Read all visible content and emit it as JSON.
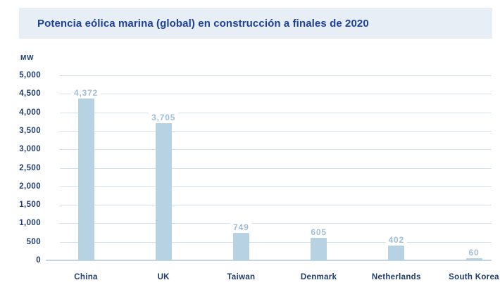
{
  "header": {
    "title": "Potencia eólica marina (global) en construcción a finales de 2020"
  },
  "chart_data": {
    "type": "bar",
    "title": "Potencia eólica marina (global) en construcción a finales de 2020",
    "xlabel": "",
    "ylabel": "MW",
    "categories": [
      "China",
      "UK",
      "Taiwan",
      "Denmark",
      "Netherlands",
      "South Korea"
    ],
    "values": [
      4372,
      3705,
      749,
      605,
      402,
      60
    ],
    "value_labels": [
      "4,372",
      "3,705",
      "749",
      "605",
      "402",
      "60"
    ],
    "ylim": [
      0,
      5000
    ],
    "ytick_step": 500,
    "ytick_labels": [
      "0",
      "500",
      "1,000",
      "1,500",
      "2,000",
      "2,500",
      "3,000",
      "3,500",
      "4,000",
      "4,500",
      "5,000"
    ],
    "grid": true,
    "legend_position": "none",
    "colors": {
      "banner_background": "#e8eef5",
      "title": "#1c419b",
      "axis_text": "#203c6e",
      "bar_fill": "#b6d2e3",
      "value_label": "#9fbed6",
      "gridline": "#d2e1ec",
      "baseline": "#c3d7e5",
      "page_background": "#ffffff"
    }
  }
}
